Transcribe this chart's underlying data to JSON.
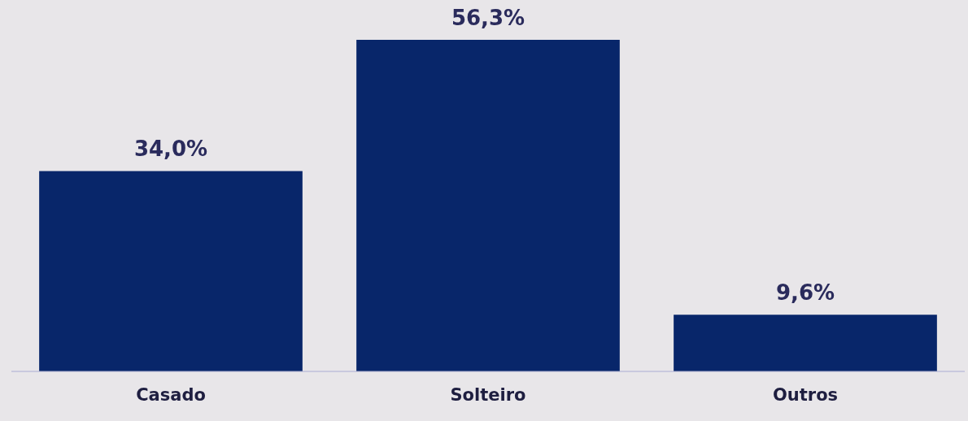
{
  "chart_data": {
    "type": "bar",
    "categories": [
      "Casado",
      "Solteiro",
      "Outros"
    ],
    "values": [
      34.0,
      56.3,
      9.6
    ],
    "color": "#08266a",
    "value_labels": [
      "34,0%",
      "56,3%",
      "9,6%"
    ],
    "grid": false,
    "legend": false
  }
}
